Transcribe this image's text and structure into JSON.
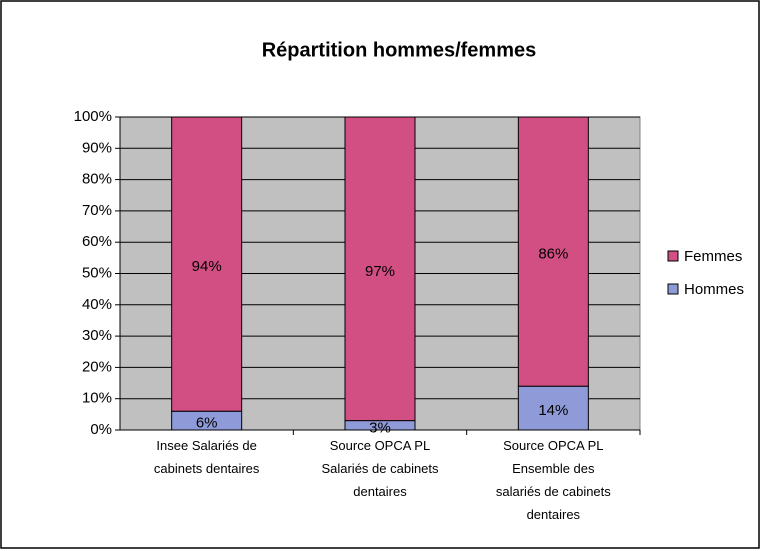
{
  "chart_data": {
    "type": "stacked_bar_percent",
    "title": "Répartition hommes/femmes",
    "categories": [
      "Insee Salariés de cabinets dentaires",
      "Source OPCA PL Salariés de cabinets dentaires",
      "Source OPCA PL Ensemble des salariés de cabinets dentaires"
    ],
    "series": [
      {
        "name": "Hommes",
        "color": "#8f9bd8",
        "values": [
          6,
          3,
          14
        ],
        "value_labels": [
          "6%",
          "3%",
          "14%"
        ]
      },
      {
        "name": "Femmes",
        "color": "#d24f83",
        "values": [
          94,
          97,
          86
        ],
        "value_labels": [
          "94%",
          "97%",
          "86%"
        ]
      }
    ],
    "ylim": [
      0,
      100
    ],
    "yticks": [
      {
        "value": 0,
        "label": "0%"
      },
      {
        "value": 10,
        "label": "10%"
      },
      {
        "value": 20,
        "label": "20%"
      },
      {
        "value": 30,
        "label": "30%"
      },
      {
        "value": 40,
        "label": "40%"
      },
      {
        "value": 50,
        "label": "50%"
      },
      {
        "value": 60,
        "label": "60%"
      },
      {
        "value": 70,
        "label": "70%"
      },
      {
        "value": 80,
        "label": "80%"
      },
      {
        "value": 90,
        "label": "90%"
      },
      {
        "value": 100,
        "label": "100%"
      }
    ],
    "grid": true,
    "legend": "right",
    "plot_background": "#c0c0c0"
  }
}
